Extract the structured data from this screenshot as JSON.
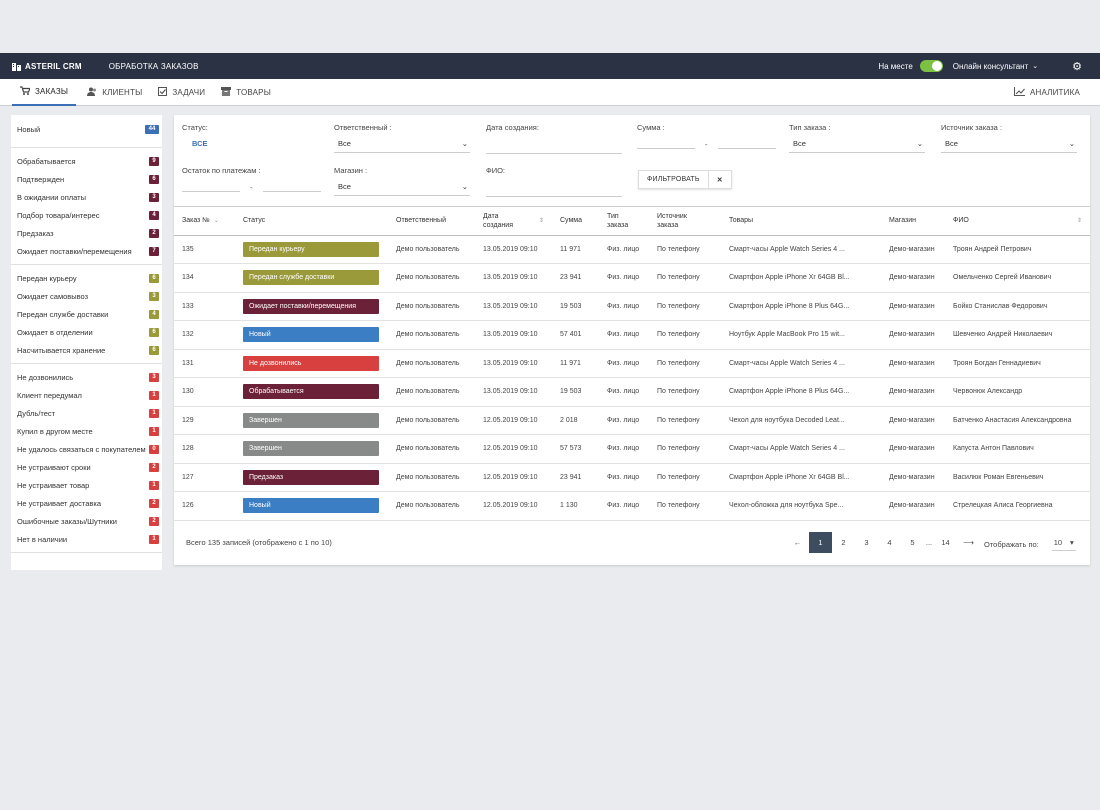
{
  "header": {
    "brand": "ASTERIL CRM",
    "section": "ОБРАБОТКА ЗАКАЗОВ",
    "presence_label": "На месте",
    "presence_on": true,
    "consultant_label": "Онлайн консультант"
  },
  "nav": {
    "orders": "ЗАКАЗЫ",
    "clients": "КЛИЕНТЫ",
    "tasks": "ЗАДАЧИ",
    "goods": "ТОВАРЫ",
    "analytics": "АНАЛИТИКА"
  },
  "sidebar": {
    "groups": [
      [
        {
          "label": "Новый",
          "count": "44",
          "color": "#3b6fb6"
        }
      ],
      [
        {
          "label": "Обрабатывается",
          "count": "9",
          "color": "#6b2138"
        },
        {
          "label": "Подтвержден",
          "count": "6",
          "color": "#6b2138"
        },
        {
          "label": "В ожидании оплаты",
          "count": "3",
          "color": "#6b2138"
        },
        {
          "label": "Подбор товара/интерес",
          "count": "4",
          "color": "#6b2138"
        },
        {
          "label": "Предзаказ",
          "count": "2",
          "color": "#6b2138"
        },
        {
          "label": "Ожидает поставки/перемещения",
          "count": "7",
          "color": "#6b2138"
        }
      ],
      [
        {
          "label": "Передан курьеру",
          "count": "6",
          "color": "#9a9a3a"
        },
        {
          "label": "Ожидает самовывоз",
          "count": "3",
          "color": "#9a9a3a"
        },
        {
          "label": "Передан службе доставки",
          "count": "4",
          "color": "#9a9a3a"
        },
        {
          "label": "Ожидает в отделении",
          "count": "6",
          "color": "#9a9a3a"
        },
        {
          "label": "Насчитывается хранение",
          "count": "6",
          "color": "#9a9a3a"
        }
      ],
      [
        {
          "label": "Не дозвонились",
          "count": "3",
          "color": "#d84040"
        },
        {
          "label": "Клиент передумал",
          "count": "1",
          "color": "#d84040"
        },
        {
          "label": "Дубль/тест",
          "count": "1",
          "color": "#d84040"
        },
        {
          "label": "Купил в другом месте",
          "count": "1",
          "color": "#d84040"
        },
        {
          "label": "Не удалось связаться с покупателем",
          "count": "0",
          "color": "#d84040"
        },
        {
          "label": "Не устраивают сроки",
          "count": "2",
          "color": "#d84040"
        },
        {
          "label": "Не устраивает товар",
          "count": "1",
          "color": "#d84040"
        },
        {
          "label": "Не устраивает доставка",
          "count": "2",
          "color": "#d84040"
        },
        {
          "label": "Ошибочные заказы/Шутники",
          "count": "2",
          "color": "#d84040"
        },
        {
          "label": "Нет в наличии",
          "count": "1",
          "color": "#d84040"
        }
      ]
    ]
  },
  "filters": {
    "status_label": "Статус:",
    "status_value": "ВСЕ",
    "responsible_label": "Ответственный :",
    "responsible_value": "Все",
    "created_label": "Дата создания:",
    "sum_label": "Сумма :",
    "sum_dash": "-",
    "order_type_label": "Тип заказа :",
    "order_type_value": "Все",
    "source_label": "Источник заказа :",
    "source_value": "Все",
    "balance_label": "Остаток по платежам :",
    "balance_dash": "-",
    "store_label": "Магазин :",
    "store_value": "Все",
    "fio_label": "ФИО:",
    "filter_button": "ФИЛЬТРОВАТЬ",
    "clear_button": "✕"
  },
  "table": {
    "columns": [
      "Заказ №",
      "Статус",
      "Ответственный",
      "Дата создания",
      "Сумма",
      "Тип заказа",
      "Источник заказа",
      "Товары",
      "Магазин",
      "ФИО"
    ],
    "rows": [
      {
        "id": "135",
        "status": "Передан курьеру",
        "color": "#9a9a3a",
        "resp": "Демо пользователь",
        "date": "13.05.2019 09:10",
        "sum": "11 971",
        "type": "Физ. лицо",
        "source": "По телефону",
        "goods": "Смарт-часы Apple Watch Series 4 ...",
        "store": "Демо-магазин",
        "fio": "Троян Андрей Петрович"
      },
      {
        "id": "134",
        "status": "Передан службе доставки",
        "color": "#9a9a3a",
        "resp": "Демо пользователь",
        "date": "13.05.2019 09:10",
        "sum": "23 941",
        "type": "Физ. лицо",
        "source": "По телефону",
        "goods": "Смартфон Apple iPhone Xr 64GB Bl...",
        "store": "Демо-магазин",
        "fio": "Омельченко Сергей Иванович"
      },
      {
        "id": "133",
        "status": "Ожидает поставки/перемещения",
        "color": "#6b2138",
        "resp": "Демо пользователь",
        "date": "13.05.2019 09:10",
        "sum": "19 503",
        "type": "Физ. лицо",
        "source": "По телефону",
        "goods": "Смартфон Apple iPhone 8 Plus 64G...",
        "store": "Демо-магазин",
        "fio": "Бойко Станислав Федорович"
      },
      {
        "id": "132",
        "status": "Новый",
        "color": "#3b7ec4",
        "resp": "Демо пользователь",
        "date": "13.05.2019 09:10",
        "sum": "57 401",
        "type": "Физ. лицо",
        "source": "По телефону",
        "goods": "Ноутбук Apple MacBook Pro 15 wit...",
        "store": "Демо-магазин",
        "fio": "Шевченко Андрей Николаевич"
      },
      {
        "id": "131",
        "status": "Не дозвонились",
        "color": "#d84040",
        "resp": "Демо пользователь",
        "date": "13.05.2019 09:10",
        "sum": "11 971",
        "type": "Физ. лицо",
        "source": "По телефону",
        "goods": "Смарт-часы Apple Watch Series 4 ...",
        "store": "Демо-магазин",
        "fio": "Троян Богдан Геннадиевич"
      },
      {
        "id": "130",
        "status": "Обрабатывается",
        "color": "#6b2138",
        "resp": "Демо пользователь",
        "date": "13.05.2019 09:10",
        "sum": "19 503",
        "type": "Физ. лицо",
        "source": "По телефону",
        "goods": "Смартфон Apple iPhone 8 Plus 64G...",
        "store": "Демо-магазин",
        "fio": "Червонюк Александр"
      },
      {
        "id": "129",
        "status": "Завершен",
        "color": "#888a8a",
        "resp": "Демо пользователь",
        "date": "12.05.2019 09:10",
        "sum": "2 018",
        "type": "Физ. лицо",
        "source": "По телефону",
        "goods": "Чехол для ноутбука Decoded Leat...",
        "store": "Демо-магазин",
        "fio": "Батченко Анастасия Александровна"
      },
      {
        "id": "128",
        "status": "Завершен",
        "color": "#888a8a",
        "resp": "Демо пользователь",
        "date": "12.05.2019 09:10",
        "sum": "57 573",
        "type": "Физ. лицо",
        "source": "По телефону",
        "goods": "Смарт-часы Apple Watch Series 4 ...",
        "store": "Демо-магазин",
        "fio": "Капуста Антон Павлович"
      },
      {
        "id": "127",
        "status": "Предзаказ",
        "color": "#6b2138",
        "resp": "Демо пользователь",
        "date": "12.05.2019 09:10",
        "sum": "23 941",
        "type": "Физ. лицо",
        "source": "По телефону",
        "goods": "Смартфон Apple iPhone Xr 64GB Bl...",
        "store": "Демо-магазин",
        "fio": "Василюк Роман Евгеньевич"
      },
      {
        "id": "126",
        "status": "Новый",
        "color": "#3b7ec4",
        "resp": "Демо пользователь",
        "date": "12.05.2019 09:10",
        "sum": "1 130",
        "type": "Физ. лицо",
        "source": "По телефону",
        "goods": "Чехол-обложка для ноутбука Spe...",
        "store": "Демо-магазин",
        "fio": "Стрелецкая Алиса Георгиевна"
      }
    ]
  },
  "footer": {
    "total_text": "Всего 135 записей (отображено с 1 по 10)",
    "pages": [
      "1",
      "2",
      "3",
      "4",
      "5",
      "...",
      "14"
    ],
    "active_page": "1",
    "prev": "←",
    "next": "⟶",
    "per_page_label": "Отображать по:",
    "per_page_value": "10"
  },
  "icons": {
    "logo": "building-icon",
    "gear": "gear-icon",
    "orders": "cart-icon",
    "clients": "users-icon",
    "tasks": "checkbox-icon",
    "goods": "box-icon",
    "analytics": "line-chart-icon"
  }
}
